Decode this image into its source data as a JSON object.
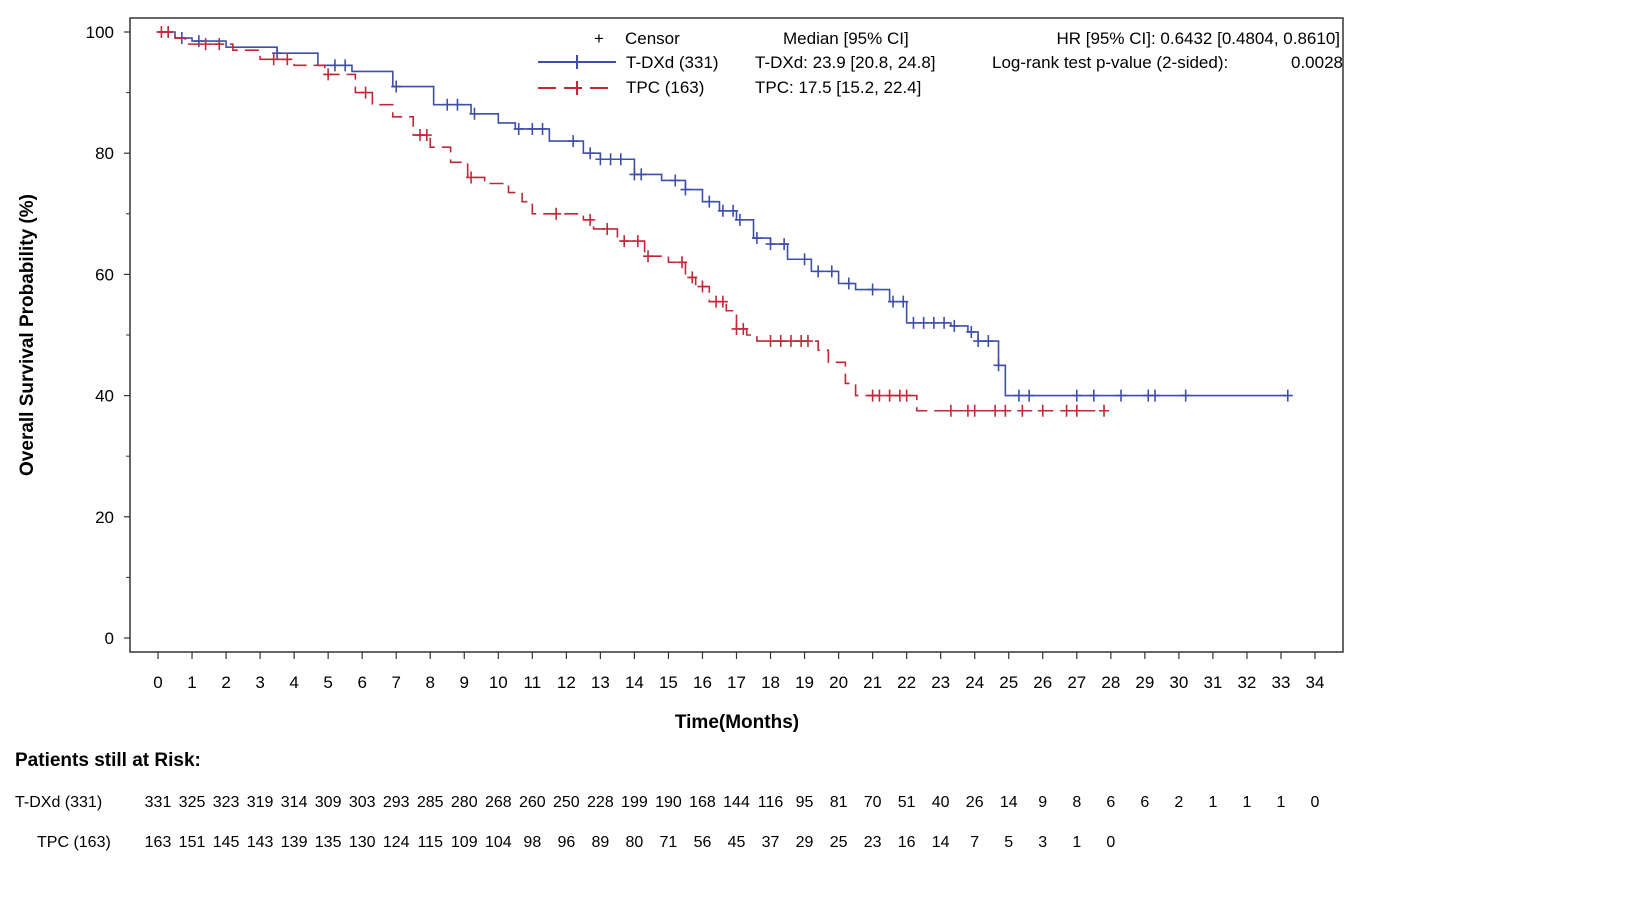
{
  "chart_data": {
    "type": "line",
    "subtype": "kaplan-meier",
    "xlabel": "Time(Months)",
    "ylabel": "Overall Survival Probability (%)",
    "xlim": [
      0,
      34
    ],
    "ylim": [
      0,
      100
    ],
    "xticks": [
      0,
      1,
      2,
      3,
      4,
      5,
      6,
      7,
      8,
      9,
      10,
      11,
      12,
      13,
      14,
      15,
      16,
      17,
      18,
      19,
      20,
      21,
      22,
      23,
      24,
      25,
      26,
      27,
      28,
      29,
      30,
      31,
      32,
      33,
      34
    ],
    "yticks": [
      0,
      20,
      40,
      60,
      80,
      100
    ],
    "grid": false,
    "legend": {
      "censor_label": "Censor",
      "median_header": "Median [95% CI]",
      "hr_text": "HR [95% CI]: 0.6432 [0.4804, 0.8610]",
      "pvalue_label": "Log-rank test p-value (2-sided):",
      "pvalue": "0.0028",
      "placement": "top-right"
    },
    "series": [
      {
        "name": "T-DXd (331)",
        "median_text": "T-DXd: 23.9 [20.8, 24.8]",
        "color": "#3f4fa8",
        "line_style": "solid",
        "steps": [
          [
            0,
            100
          ],
          [
            0.5,
            99
          ],
          [
            1,
            98.5
          ],
          [
            2,
            97.5
          ],
          [
            3.5,
            96.5
          ],
          [
            4.7,
            94.5
          ],
          [
            5.7,
            93.5
          ],
          [
            6.9,
            91
          ],
          [
            8.1,
            88
          ],
          [
            9.2,
            86.5
          ],
          [
            10,
            85
          ],
          [
            10.5,
            84
          ],
          [
            11.5,
            82
          ],
          [
            12.5,
            80
          ],
          [
            13,
            79
          ],
          [
            14,
            76.5
          ],
          [
            14.8,
            75.5
          ],
          [
            15.5,
            74
          ],
          [
            16,
            72
          ],
          [
            16.5,
            70.5
          ],
          [
            17,
            69
          ],
          [
            17.5,
            66
          ],
          [
            18,
            65
          ],
          [
            18.5,
            62.5
          ],
          [
            19.2,
            60.5
          ],
          [
            20,
            58.5
          ],
          [
            20.5,
            57.5
          ],
          [
            21.5,
            55.5
          ],
          [
            22,
            52
          ],
          [
            23.3,
            51.5
          ],
          [
            23.8,
            50.5
          ],
          [
            24.1,
            49
          ],
          [
            24.7,
            45
          ],
          [
            24.9,
            40
          ]
        ],
        "end": 33.2,
        "censors": [
          0.3,
          0.7,
          1.2,
          3.5,
          5.2,
          5.5,
          7,
          8.5,
          8.8,
          9.3,
          10.6,
          11,
          11.3,
          12.2,
          12.7,
          13,
          13.3,
          13.6,
          14,
          14.2,
          15.2,
          15.5,
          16.2,
          16.6,
          16.9,
          17.1,
          17.6,
          18,
          18.4,
          19,
          19.4,
          19.8,
          20.3,
          21,
          21.6,
          21.9,
          22.2,
          22.5,
          22.8,
          23.1,
          23.4,
          23.9,
          24.1,
          24.4,
          24.7,
          25.3,
          25.6,
          27,
          27.5,
          28.3,
          29.1,
          29.3,
          30.2,
          33.2
        ],
        "at_risk": [
          331,
          325,
          323,
          319,
          314,
          309,
          303,
          293,
          285,
          280,
          268,
          260,
          250,
          228,
          199,
          190,
          168,
          144,
          116,
          95,
          81,
          70,
          51,
          40,
          26,
          14,
          9,
          8,
          6,
          6,
          2,
          1,
          1,
          1,
          0
        ]
      },
      {
        "name": "TPC (163)",
        "median_text": "TPC: 17.5 [15.2, 22.4]",
        "color": "#c0283a",
        "line_style": "dashed",
        "steps": [
          [
            0,
            100
          ],
          [
            0.5,
            99
          ],
          [
            0.8,
            98
          ],
          [
            2.2,
            97
          ],
          [
            3,
            95.5
          ],
          [
            4,
            94.5
          ],
          [
            4.9,
            93
          ],
          [
            5.8,
            90
          ],
          [
            6.3,
            88
          ],
          [
            6.9,
            86
          ],
          [
            7.5,
            83
          ],
          [
            8,
            81
          ],
          [
            8.6,
            78.5
          ],
          [
            9.1,
            76
          ],
          [
            9.6,
            75
          ],
          [
            10.3,
            73.5
          ],
          [
            10.7,
            72
          ],
          [
            11,
            70
          ],
          [
            12.5,
            69
          ],
          [
            12.8,
            67.5
          ],
          [
            13.5,
            65.5
          ],
          [
            14.3,
            63
          ],
          [
            15,
            62
          ],
          [
            15.5,
            59.5
          ],
          [
            15.8,
            58
          ],
          [
            16.2,
            55.5
          ],
          [
            16.7,
            54
          ],
          [
            17,
            51
          ],
          [
            17.3,
            50
          ],
          [
            17.6,
            49
          ],
          [
            19.4,
            47.5
          ],
          [
            19.7,
            45.5
          ],
          [
            20.2,
            42
          ],
          [
            20.5,
            40
          ],
          [
            22.3,
            37.5
          ]
        ],
        "end": 27.8,
        "censors": [
          0.1,
          0.3,
          1.4,
          1.8,
          3.4,
          3.8,
          5,
          6.1,
          7.7,
          7.9,
          9.2,
          11.7,
          12.7,
          13.2,
          13.7,
          14.1,
          14.4,
          15.4,
          15.7,
          16,
          16.4,
          16.6,
          17,
          17.2,
          18,
          18.3,
          18.6,
          18.9,
          19.1,
          21,
          21.2,
          21.5,
          21.8,
          22,
          23.3,
          23.8,
          24,
          24.6,
          24.9,
          25.4,
          26,
          26.7,
          27,
          27.8
        ],
        "at_risk": [
          163,
          151,
          145,
          143,
          139,
          135,
          130,
          124,
          115,
          109,
          104,
          98,
          96,
          89,
          80,
          71,
          56,
          45,
          37,
          29,
          25,
          23,
          16,
          14,
          7,
          5,
          3,
          1,
          0
        ]
      }
    ],
    "risk_table_title": "Patients still at Risk:"
  }
}
